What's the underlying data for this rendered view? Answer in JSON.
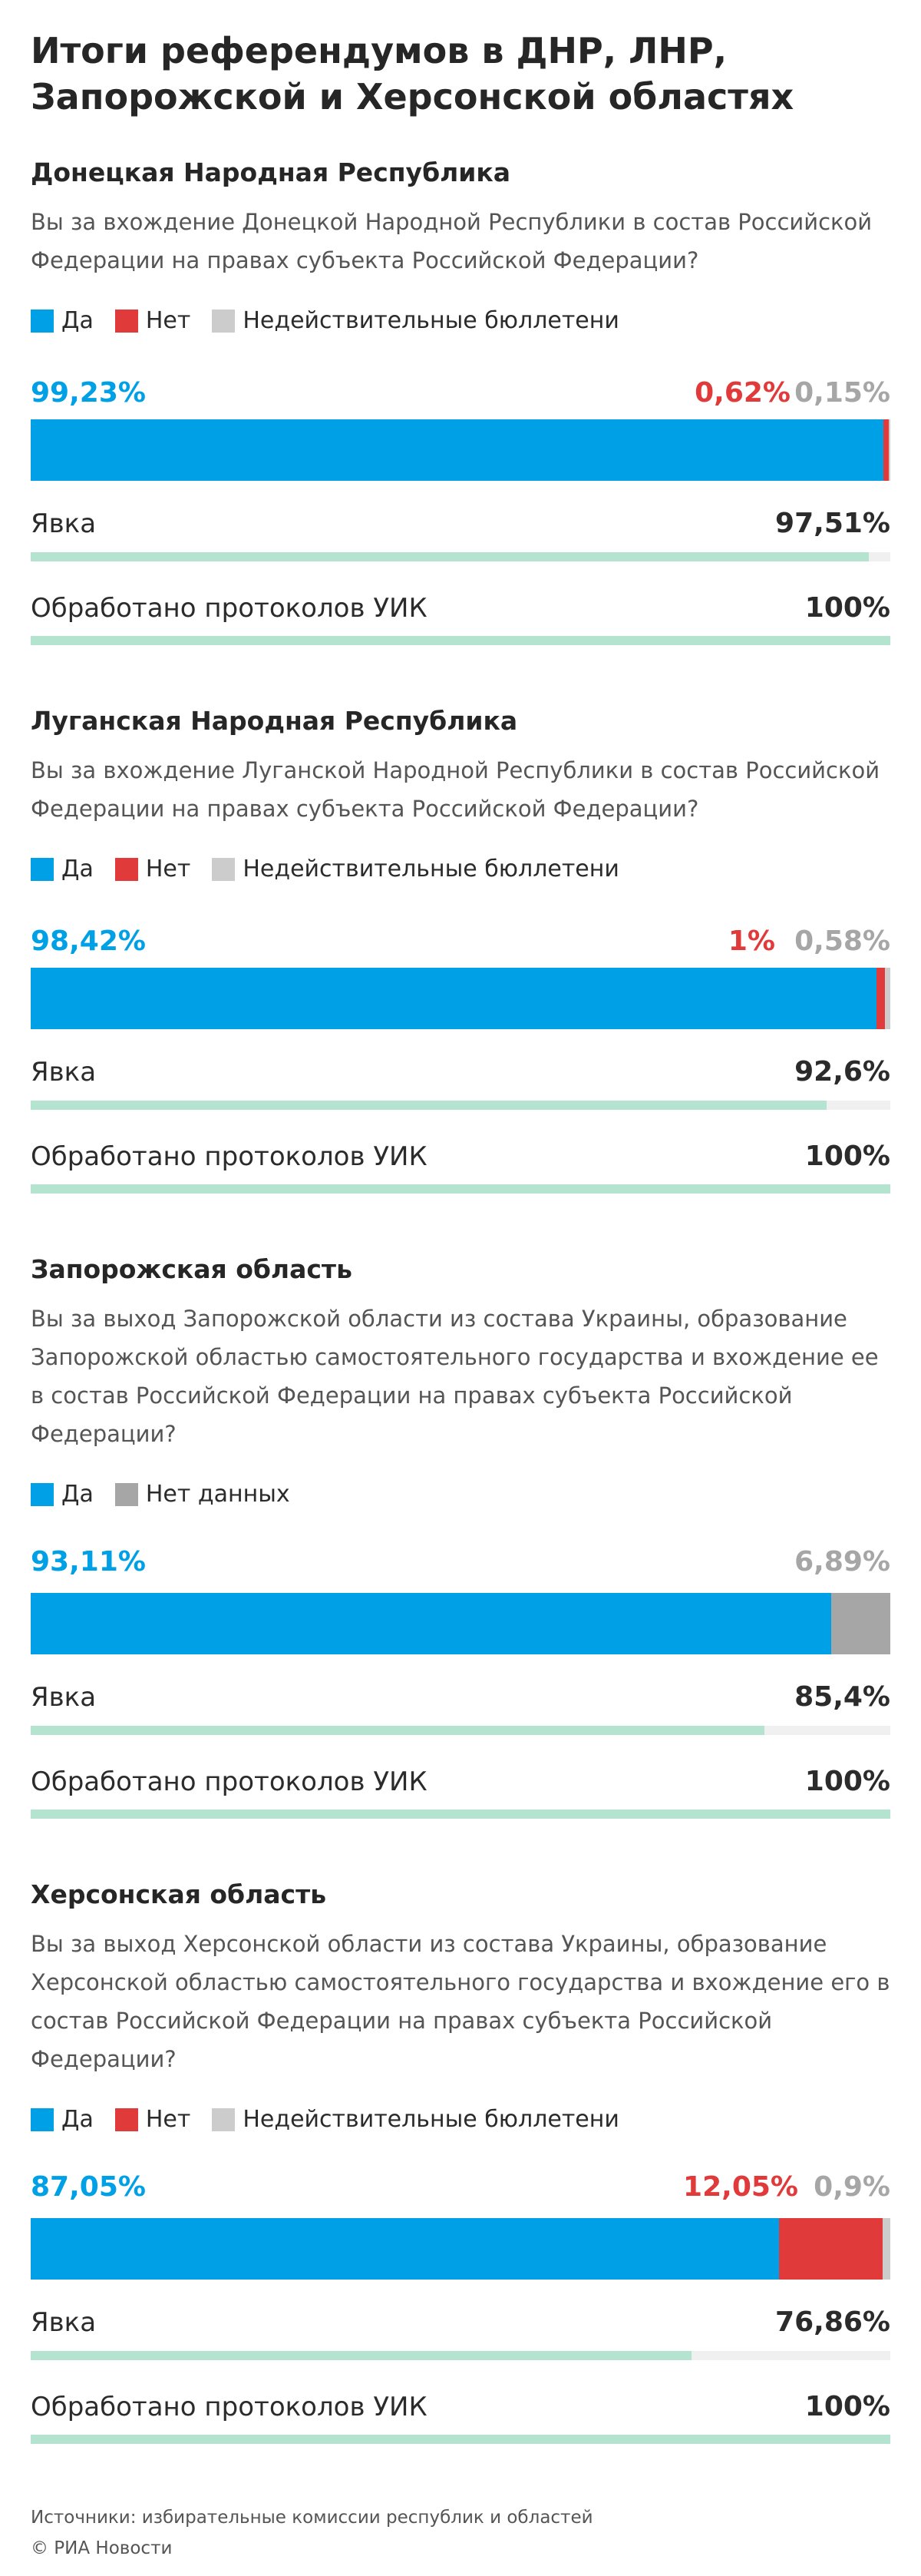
{
  "title": "Итоги референдумов в ДНР, ЛНР, Запорожской и Херсонской областях",
  "colors": {
    "yes": "#00a0e6",
    "no": "#e03a3a",
    "invalid": "#cccccc",
    "nodata": "#a6a6a6",
    "progress": "#b4e3d0",
    "track": "#f0f0f0"
  },
  "chart_data": [
    {
      "type": "bar",
      "title": "Донецкая Народная Республика",
      "question": "Вы за вхождение Донецкой Народной Республики в состав Российской Федерации на правах субъекта Российской Федерации?",
      "legend": [
        "Да",
        "Нет",
        "Недействительные бюллетени"
      ],
      "series": [
        {
          "name": "Да",
          "value": 99.23,
          "label": "99,23%"
        },
        {
          "name": "Нет",
          "value": 0.62,
          "label": "0,62%"
        },
        {
          "name": "Недействительные бюллетени",
          "value": 0.15,
          "label": "0,15%"
        }
      ],
      "turnout_label": "Явка",
      "turnout": 97.51,
      "turnout_text": "97,51%",
      "protocols_label": "Обработано протоколов УИК",
      "protocols": 100,
      "protocols_text": "100%"
    },
    {
      "type": "bar",
      "title": "Луганская Народная Республика",
      "question": "Вы за вхождение Луганской Народной Республики в состав Российской Федерации на правах субъекта Российской Федерации?",
      "legend": [
        "Да",
        "Нет",
        "Недействительные бюллетени"
      ],
      "series": [
        {
          "name": "Да",
          "value": 98.42,
          "label": "98,42%"
        },
        {
          "name": "Нет",
          "value": 1,
          "label": "1%"
        },
        {
          "name": "Недействительные бюллетени",
          "value": 0.58,
          "label": "0,58%"
        }
      ],
      "turnout_label": "Явка",
      "turnout": 92.6,
      "turnout_text": "92,6%",
      "protocols_label": "Обработано протоколов УИК",
      "protocols": 100,
      "protocols_text": "100%"
    },
    {
      "type": "bar",
      "title": "Запорожская область",
      "question": "Вы за выход Запорожской области из состава Украины, образование Запорожской областью самостоятельного государства и вхождение ее в состав Российской Федерации на правах субъекта Российской Федерации?",
      "legend": [
        "Да",
        "Нет данных"
      ],
      "series": [
        {
          "name": "Да",
          "value": 93.11,
          "label": "93,11%"
        },
        {
          "name": "Нет данных",
          "value": 6.89,
          "label": "6,89%"
        }
      ],
      "turnout_label": "Явка",
      "turnout": 85.4,
      "turnout_text": "85,4%",
      "protocols_label": "Обработано протоколов УИК",
      "protocols": 100,
      "protocols_text": "100%"
    },
    {
      "type": "bar",
      "title": "Херсонская область",
      "question": "Вы за выход Херсонской области из состава Украины, образование Херсонской областью самостоятельного государства и вхождение его в состав Российской Федерации на правах субъекта Российской Федерации?",
      "legend": [
        "Да",
        "Нет",
        "Недействительные бюллетени"
      ],
      "series": [
        {
          "name": "Да",
          "value": 87.05,
          "label": "87,05%"
        },
        {
          "name": "Нет",
          "value": 12.05,
          "label": "12,05%"
        },
        {
          "name": "Недействительные бюллетени",
          "value": 0.9,
          "label": "0,9%"
        }
      ],
      "turnout_label": "Явка",
      "turnout": 76.86,
      "turnout_text": "76,86%",
      "protocols_label": "Обработано протоколов УИК",
      "protocols": 100,
      "protocols_text": "100%"
    }
  ],
  "footer": {
    "sources": "Источники: избирательные комиссии республик и областей",
    "copyright": "© РИА Новости"
  }
}
